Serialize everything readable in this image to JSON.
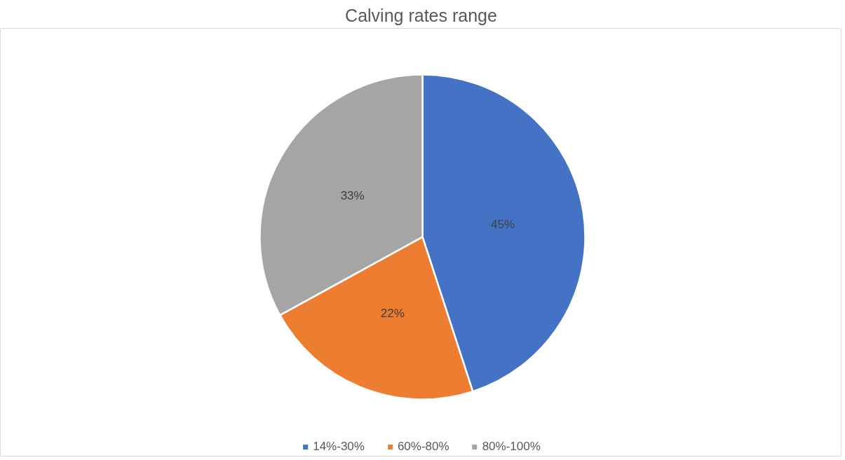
{
  "chart_data": {
    "type": "pie",
    "title": "Calving rates range",
    "categories": [
      "14%-30%",
      "60%-80%",
      "80%-100%"
    ],
    "values": [
      45,
      22,
      33
    ],
    "colors": [
      "#4472c4",
      "#ed7d31",
      "#a5a5a5"
    ],
    "value_labels": [
      "45%",
      "22%",
      "33%"
    ],
    "legend": "bottom"
  }
}
